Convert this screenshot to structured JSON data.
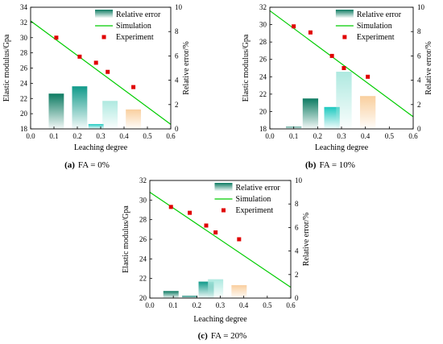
{
  "chart_data": [
    {
      "type": "bar",
      "panel_label": "(a)",
      "caption": "FA = 0%",
      "xlabel": "Leaching degree",
      "ylabel": "Elastic modulus/Gpa",
      "y2label": "Relative error/%",
      "xlim": [
        0.0,
        0.6
      ],
      "ylim": [
        18,
        34
      ],
      "y2lim": [
        0,
        10
      ],
      "xticks": [
        "0.0",
        "0.1",
        "0.2",
        "0.3",
        "0.4",
        "0.5",
        "0.6"
      ],
      "yticks": [
        "18",
        "20",
        "22",
        "24",
        "26",
        "28",
        "30",
        "32",
        "34"
      ],
      "y2ticks": [
        "0",
        "2",
        "4",
        "6",
        "8",
        "10"
      ],
      "legend": [
        "Relative error",
        "Simulation",
        "Experiment"
      ],
      "legend_position": "top-right",
      "series": [
        {
          "name": "Simulation",
          "type": "line",
          "color": "#00cc00",
          "x": [
            0.0,
            0.6
          ],
          "y": [
            32.2,
            18.6
          ]
        },
        {
          "name": "Experiment",
          "type": "scatter",
          "color": "#e00000",
          "x": [
            0.11,
            0.21,
            0.28,
            0.33,
            0.44
          ],
          "y": [
            30.0,
            27.5,
            26.7,
            25.5,
            23.5
          ]
        },
        {
          "name": "Relative error",
          "type": "bar",
          "x": [
            0.11,
            0.21,
            0.28,
            0.34,
            0.44
          ],
          "width": 0.065,
          "values": [
            2.9,
            3.5,
            0.4,
            2.3,
            1.6
          ],
          "colors": [
            "#0d7b62",
            "#119a8a",
            "#1ec9c0",
            "#aee9e0",
            "#f9cf9e"
          ]
        }
      ]
    },
    {
      "type": "bar",
      "panel_label": "(b)",
      "caption": "FA = 10%",
      "xlabel": "Leaching degree",
      "ylabel": "Elastic modulus/Gpa",
      "y2label": "Relative error/%",
      "xlim": [
        0.0,
        0.6
      ],
      "ylim": [
        18,
        32
      ],
      "y2lim": [
        0,
        10
      ],
      "xticks": [
        "0.0",
        "0.1",
        "0.2",
        "0.3",
        "0.4",
        "0.5",
        "0.6"
      ],
      "yticks": [
        "18",
        "20",
        "22",
        "24",
        "26",
        "28",
        "30",
        "32"
      ],
      "y2ticks": [
        "0",
        "2",
        "4",
        "6",
        "8",
        "10"
      ],
      "legend": [
        "Relative error",
        "Simulation",
        "Experiment"
      ],
      "legend_position": "top-right",
      "series": [
        {
          "name": "Simulation",
          "type": "line",
          "color": "#00cc00",
          "x": [
            0.0,
            0.6
          ],
          "y": [
            31.6,
            19.4
          ]
        },
        {
          "name": "Experiment",
          "type": "scatter",
          "color": "#e00000",
          "x": [
            0.1,
            0.17,
            0.26,
            0.31,
            0.41
          ],
          "y": [
            29.8,
            29.1,
            26.4,
            25.0,
            24.0
          ]
        },
        {
          "name": "Relative error",
          "type": "bar",
          "x": [
            0.1,
            0.17,
            0.26,
            0.31,
            0.41
          ],
          "width": 0.065,
          "values": [
            0.2,
            2.5,
            1.8,
            4.7,
            2.7
          ],
          "colors": [
            "#5fa79a",
            "#0d7b62",
            "#1ec9c0",
            "#aee9e0",
            "#f9cf9e"
          ]
        }
      ]
    },
    {
      "type": "bar",
      "panel_label": "(c)",
      "caption": "FA = 20%",
      "xlabel": "Leaching degree",
      "ylabel": "Elastic modulus/Gpa",
      "y2label": "Relative error/%",
      "xlim": [
        0.0,
        0.6
      ],
      "ylim": [
        20,
        32
      ],
      "y2lim": [
        0,
        10
      ],
      "xticks": [
        "0.0",
        "0.1",
        "0.2",
        "0.3",
        "0.4",
        "0.5",
        "0.6"
      ],
      "yticks": [
        "20",
        "22",
        "24",
        "26",
        "28",
        "30",
        "32"
      ],
      "y2ticks": [
        "0",
        "2",
        "4",
        "6",
        "8",
        "10"
      ],
      "legend": [
        "Relative error",
        "Simulation",
        "Experiment"
      ],
      "legend_position": "top-right",
      "series": [
        {
          "name": "Simulation",
          "type": "line",
          "color": "#00cc00",
          "x": [
            0.0,
            0.6
          ],
          "y": [
            30.8,
            21.1
          ]
        },
        {
          "name": "Experiment",
          "type": "scatter",
          "color": "#e00000",
          "x": [
            0.09,
            0.17,
            0.24,
            0.28,
            0.38
          ],
          "y": [
            29.3,
            28.7,
            27.4,
            26.7,
            26.0
          ]
        },
        {
          "name": "Relative error",
          "type": "bar",
          "x": [
            0.09,
            0.17,
            0.24,
            0.28,
            0.38
          ],
          "width": 0.065,
          "values": [
            0.6,
            0.2,
            1.4,
            1.6,
            1.1
          ],
          "colors": [
            "#0d7b62",
            "#1a8a7a",
            "#119a8a",
            "#aee9e0",
            "#f9cf9e"
          ]
        }
      ]
    }
  ]
}
